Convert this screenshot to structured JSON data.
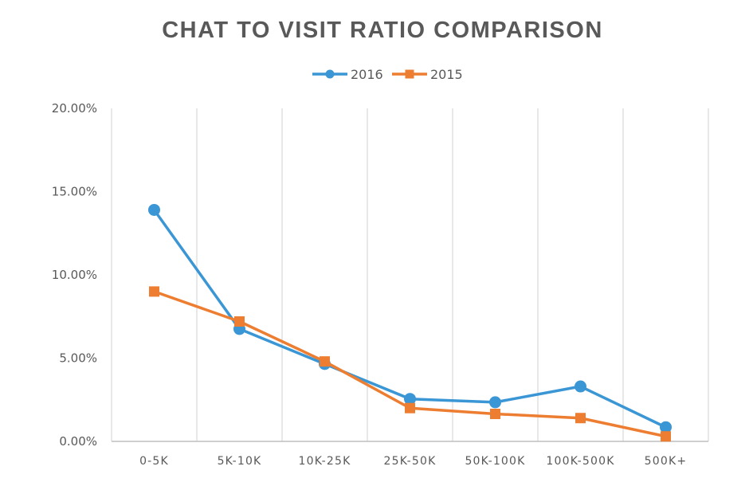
{
  "chart_data": {
    "type": "line",
    "title": "CHAT TO VISIT RATIO COMPARISON",
    "categories": [
      "0-5K",
      "5K-10K",
      "10K-25K",
      "25K-50K",
      "50K-100K",
      "100K-500K",
      "500K+"
    ],
    "series": [
      {
        "name": "2016",
        "color": "#3A96D4",
        "marker": "circle",
        "values": [
          13.9,
          6.75,
          4.65,
          2.55,
          2.35,
          3.3,
          0.85
        ]
      },
      {
        "name": "2015",
        "color": "#ED7D31",
        "marker": "square",
        "values": [
          9.0,
          7.2,
          4.8,
          2.0,
          1.65,
          1.4,
          0.3
        ]
      }
    ],
    "ylim": [
      0,
      20
    ],
    "yticks": [
      0,
      5,
      10,
      15,
      20
    ],
    "ytick_labels": [
      "0.00%",
      "5.00%",
      "10.00%",
      "15.00%",
      "20.00%"
    ],
    "grid": "vertical",
    "legend_position": "top-center",
    "xlabel": "",
    "ylabel": ""
  }
}
